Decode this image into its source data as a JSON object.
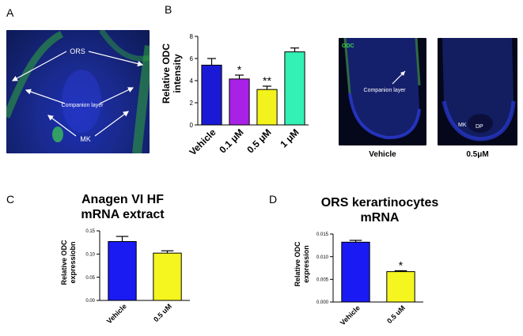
{
  "panels": {
    "a": {
      "letter": "A",
      "labels": {
        "ors": "ORS",
        "companion": "Companion layer",
        "mk": "MK"
      }
    },
    "b": {
      "letter": "B"
    },
    "c": {
      "letter": "C",
      "title_line1": "Anagen VI HF",
      "title_line2": "mRNA extract"
    },
    "d": {
      "letter": "D",
      "title_line1": "ORS kerartinocytes",
      "title_line2": "mRNA"
    },
    "micrographs": {
      "left": {
        "stain": "ODC",
        "label": "Companion layer",
        "caption": "Vehicle"
      },
      "right": {
        "mk": "MK",
        "dp": "DP",
        "caption": "0.5μM"
      }
    }
  },
  "chart_data": [
    {
      "id": "B",
      "type": "bar",
      "categories": [
        "Vehicle",
        "0.1 μM",
        "0.5 μM",
        "1 μM"
      ],
      "values": [
        5.4,
        4.15,
        3.2,
        6.6
      ],
      "errors": [
        0.6,
        0.35,
        0.3,
        0.35
      ],
      "significance": [
        "",
        "*",
        "**",
        ""
      ],
      "colors": [
        "#1a1ad6",
        "#a821e6",
        "#f2f21c",
        "#33f0b4"
      ],
      "ylabel": "Relative ODC intensity",
      "ylabel_line1": "Relative ODC",
      "ylabel_line2": "intensity",
      "ylim": [
        0,
        8
      ],
      "yticks": [
        0,
        2,
        4,
        6,
        8
      ],
      "ytick_labels": [
        "0",
        "2",
        "4",
        "6",
        "8"
      ]
    },
    {
      "id": "C",
      "type": "bar",
      "categories": [
        "Vehicle",
        "0.5 uM"
      ],
      "values": [
        0.127,
        0.102
      ],
      "errors": [
        0.011,
        0.005
      ],
      "significance": [
        "",
        ""
      ],
      "colors": [
        "#1a1af2",
        "#f5f51f"
      ],
      "ylabel": "Relative ODC expressiobn",
      "ylabel_line1": "Relative ODC",
      "ylabel_line2": "expressiobn",
      "ylim": [
        0,
        0.15
      ],
      "yticks": [
        0,
        0.05,
        0.1,
        0.15
      ],
      "ytick_labels": [
        "0.00",
        "0.05",
        "0.10",
        "0.15"
      ]
    },
    {
      "id": "D",
      "type": "bar",
      "categories": [
        "Vehicle",
        "0.5 uM"
      ],
      "values": [
        0.0132,
        0.0067
      ],
      "errors": [
        0.0004,
        0.0002
      ],
      "significance": [
        "",
        "*"
      ],
      "colors": [
        "#1a1af2",
        "#f5f51f"
      ],
      "ylabel": "Relative ODC expression",
      "ylabel_line1": "Relative ODC",
      "ylabel_line2": "expression",
      "ylim": [
        0,
        0.015
      ],
      "yticks": [
        0,
        0.005,
        0.01,
        0.015
      ],
      "ytick_labels": [
        "0.000",
        "0.005",
        "0.010",
        "0.015"
      ]
    }
  ]
}
